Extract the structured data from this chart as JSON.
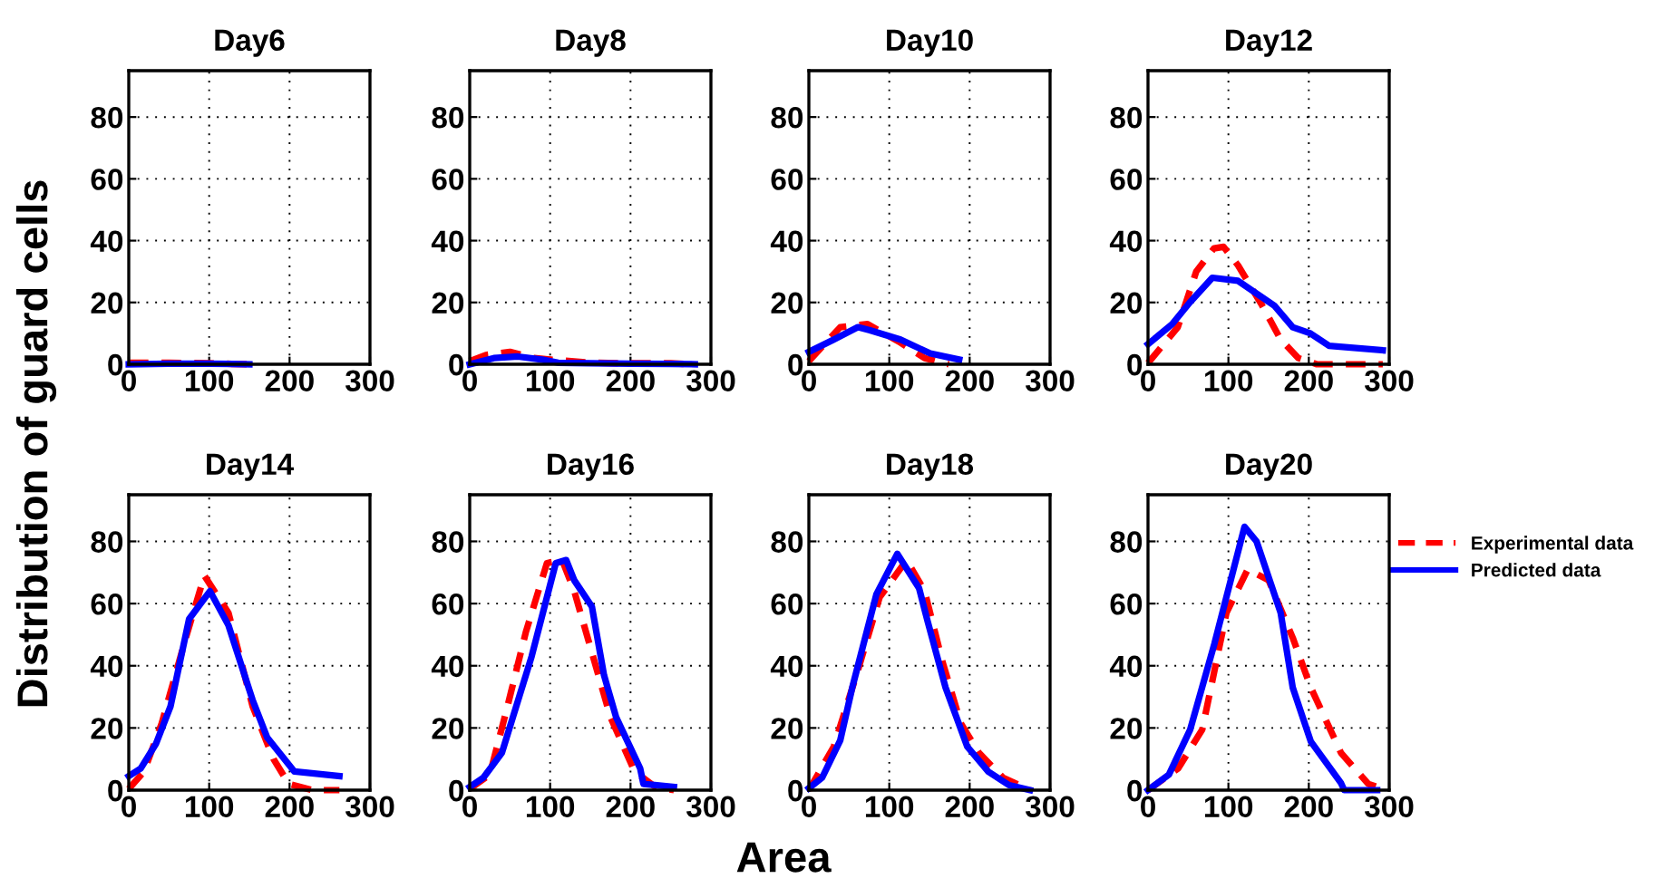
{
  "chart_data": [
    {
      "type": "line",
      "title": "Day6",
      "ylabel": "Distribution of guard cells",
      "xlim": [
        0,
        300
      ],
      "ylim": [
        0,
        95
      ],
      "xticks": [
        0,
        100,
        200,
        300
      ],
      "yticks": [
        0,
        20,
        40,
        60,
        80
      ],
      "grid": true,
      "legend": "right",
      "series": [
        {
          "name": "Experimental data",
          "color": "#ff0000",
          "line_style": "dashed",
          "x": [
            0,
            50,
            100,
            150
          ],
          "values": [
            0.5,
            0.5,
            0.3,
            0
          ]
        },
        {
          "name": "Predicted data",
          "color": "#0000ff",
          "line_style": "solid",
          "x": [
            0,
            50,
            100,
            150
          ],
          "values": [
            0,
            0.2,
            0.2,
            0
          ]
        }
      ]
    },
    {
      "type": "line",
      "title": "Day8",
      "xlim": [
        0,
        300
      ],
      "ylim": [
        0,
        95
      ],
      "xticks": [
        0,
        100,
        200,
        300
      ],
      "yticks": [
        0,
        20,
        40,
        60,
        80
      ],
      "grid": true,
      "series": [
        {
          "color": "#ff0000",
          "line_style": "dashed",
          "x": [
            0,
            20,
            50,
            80,
            100,
            150,
            200,
            250,
            280
          ],
          "values": [
            1,
            3,
            4,
            2,
            1.5,
            0.5,
            0.3,
            0.3,
            0
          ]
        },
        {
          "color": "#0000ff",
          "line_style": "solid",
          "x": [
            0,
            30,
            60,
            90,
            110,
            150,
            200,
            250,
            280
          ],
          "values": [
            0,
            2,
            2.5,
            1.5,
            0.5,
            0.3,
            0.2,
            0.1,
            0
          ]
        }
      ]
    },
    {
      "type": "line",
      "title": "Day10",
      "xlim": [
        0,
        300
      ],
      "ylim": [
        0,
        95
      ],
      "xticks": [
        0,
        100,
        200,
        300
      ],
      "yticks": [
        0,
        20,
        40,
        60,
        80
      ],
      "grid": true,
      "series": [
        {
          "color": "#ff0000",
          "line_style": "dashed",
          "x": [
            0,
            39,
            73,
            114,
            144,
            174
          ],
          "values": [
            1,
            12,
            13,
            7,
            2,
            0
          ]
        },
        {
          "color": "#0000ff",
          "line_style": "solid",
          "x": [
            0,
            31,
            61,
            76,
            114,
            151,
            187
          ],
          "values": [
            4,
            8,
            12,
            11,
            8,
            3.5,
            1.5
          ]
        }
      ]
    },
    {
      "type": "line",
      "title": "Day12",
      "xlim": [
        0,
        300
      ],
      "ylim": [
        0,
        95
      ],
      "xticks": [
        0,
        100,
        200,
        300
      ],
      "yticks": [
        0,
        20,
        40,
        60,
        80
      ],
      "grid": true,
      "series": [
        {
          "color": "#ff0000",
          "line_style": "dashed",
          "x": [
            0,
            37,
            60,
            82,
            94,
            112,
            142,
            165,
            187,
            210,
            292
          ],
          "values": [
            0.4,
            12,
            30,
            37.5,
            38,
            32,
            19,
            8,
            2,
            0,
            0
          ]
        },
        {
          "color": "#0000ff",
          "line_style": "solid",
          "x": [
            0,
            30,
            52,
            80,
            112,
            157,
            180,
            202,
            225,
            292
          ],
          "values": [
            6.5,
            13,
            20,
            28,
            27,
            19,
            12,
            10,
            6,
            4.5
          ]
        }
      ]
    },
    {
      "type": "line",
      "title": "Day14",
      "xlim": [
        0,
        300
      ],
      "ylim": [
        0,
        95
      ],
      "xticks": [
        0,
        100,
        200,
        300
      ],
      "yticks": [
        0,
        20,
        40,
        60,
        80
      ],
      "grid": true,
      "series": [
        {
          "color": "#ff0000",
          "line_style": "dashed",
          "x": [
            0,
            19,
            41,
            71,
            94,
            124,
            154,
            180,
            199,
            229,
            262
          ],
          "values": [
            0.4,
            6,
            21.5,
            49,
            69,
            57,
            27,
            10,
            2,
            0,
            0
          ]
        },
        {
          "color": "#0000ff",
          "line_style": "solid",
          "x": [
            0,
            15,
            34,
            52,
            75,
            101,
            124,
            154,
            172,
            206,
            262
          ],
          "values": [
            4.5,
            7,
            15,
            27,
            55,
            64,
            53,
            29,
            17,
            6,
            4.5
          ]
        }
      ]
    },
    {
      "type": "line",
      "title": "Day16",
      "xlim": [
        0,
        300
      ],
      "ylim": [
        0,
        95
      ],
      "xticks": [
        0,
        100,
        200,
        300
      ],
      "yticks": [
        0,
        20,
        40,
        60,
        80
      ],
      "grid": true,
      "series": [
        {
          "color": "#ff0000",
          "line_style": "dashed",
          "x": [
            0,
            25,
            47,
            70,
            96,
            115,
            130,
            175,
            205,
            231,
            254
          ],
          "values": [
            0.4,
            5,
            27,
            51,
            73,
            74,
            64,
            23.5,
            6,
            1,
            0
          ]
        },
        {
          "color": "#0000ff",
          "line_style": "solid",
          "x": [
            0,
            17,
            40,
            77,
            107,
            120,
            130,
            152,
            167,
            182,
            212,
            216,
            254
          ],
          "values": [
            1,
            4,
            12,
            43,
            73,
            74,
            67.5,
            59,
            37,
            23.5,
            7,
            2,
            1
          ]
        }
      ]
    },
    {
      "type": "line",
      "title": "Day18",
      "xlabel": "Area",
      "xlim": [
        0,
        300
      ],
      "ylim": [
        0,
        95
      ],
      "xticks": [
        0,
        100,
        200,
        300
      ],
      "yticks": [
        0,
        20,
        40,
        60,
        80
      ],
      "grid": true,
      "series": [
        {
          "color": "#ff0000",
          "line_style": "dashed",
          "x": [
            0,
            31,
            61.5,
            88,
            121.5,
            144,
            166.5,
            189,
            211.5,
            241.5,
            275
          ],
          "values": [
            0,
            14,
            39,
            62,
            74,
            64,
            41,
            21.5,
            12,
            4,
            0
          ]
        },
        {
          "color": "#0000ff",
          "line_style": "solid",
          "x": [
            0,
            16.5,
            39,
            54,
            84,
            110,
            137,
            148,
            170,
            197,
            223,
            249,
            275
          ],
          "values": [
            0.6,
            4,
            16,
            33,
            63,
            76,
            65,
            54,
            33,
            14,
            6,
            1.6,
            0
          ]
        }
      ]
    },
    {
      "type": "line",
      "title": "Day20",
      "xlim": [
        0,
        300
      ],
      "ylim": [
        0,
        95
      ],
      "xticks": [
        0,
        100,
        200,
        300
      ],
      "yticks": [
        0,
        20,
        40,
        60,
        80
      ],
      "grid": true,
      "series": [
        {
          "color": "#ff0000",
          "line_style": "dashed",
          "x": [
            0,
            37.5,
            67.5,
            97.5,
            124,
            150,
            180,
            202.5,
            240,
            274,
            292
          ],
          "values": [
            0,
            7,
            19.5,
            57,
            71,
            67.5,
            49,
            33,
            12,
            2,
            0.4
          ]
        },
        {
          "color": "#0000ff",
          "line_style": "solid",
          "x": [
            0,
            26,
            52.5,
            82.5,
            120,
            135,
            165,
            180,
            202.5,
            240,
            244,
            285
          ],
          "values": [
            0,
            5,
            19.5,
            47,
            84.7,
            80,
            57,
            33,
            15.6,
            2.3,
            0,
            0
          ]
        }
      ]
    }
  ]
}
